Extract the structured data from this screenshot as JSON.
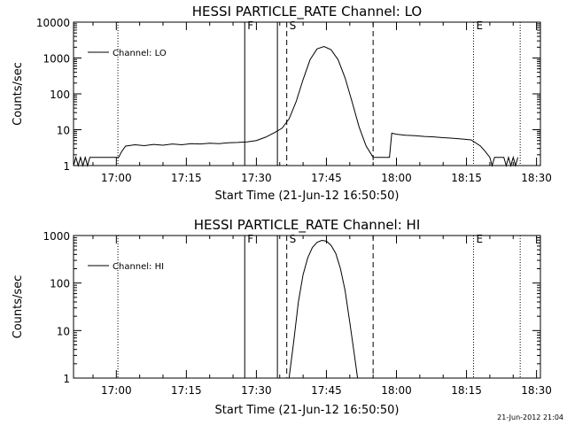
{
  "footer": {
    "timestamp": "21-Jun-2012 21:04"
  },
  "colors": {
    "line": "#000000",
    "background": "#ffffff"
  },
  "chart_data": [
    {
      "type": "line",
      "title": "HESSI PARTICLE_RATE Channel: LO",
      "xlabel": "Start Time (21-Jun-12 16:50:50)",
      "ylabel": "Counts/sec",
      "yscale": "log",
      "ylim": [
        1,
        10000
      ],
      "xlim": [
        "16:50:50",
        "18:30:50"
      ],
      "x_ticks": [
        "17:00",
        "17:15",
        "17:30",
        "17:45",
        "18:00",
        "18:15",
        "18:30"
      ],
      "y_ticks": [
        "1",
        "10",
        "100",
        "1000",
        "10000"
      ],
      "legend": {
        "position": "top-left",
        "entries": [
          "Channel: LO"
        ]
      },
      "series": [
        {
          "name": "Channel: LO",
          "x": [
            "16:50:50",
            "16:51:20",
            "16:51:50",
            "16:52:20",
            "16:52:50",
            "16:53:20",
            "16:53:50",
            "16:54:20",
            "16:55:00",
            "16:57:00",
            "16:59:00",
            "17:00:30",
            "17:01:10",
            "17:02:00",
            "17:04:00",
            "17:06:00",
            "17:08:00",
            "17:10:00",
            "17:12:00",
            "17:14:00",
            "17:16:00",
            "17:18:00",
            "17:20:00",
            "17:22:00",
            "17:24:00",
            "17:26:00",
            "17:28:00",
            "17:30:00",
            "17:32:00",
            "17:34:00",
            "17:35:30",
            "17:37:00",
            "17:38:30",
            "17:40:00",
            "17:41:30",
            "17:43:00",
            "17:44:30",
            "17:46:00",
            "17:47:30",
            "17:49:00",
            "17:50:30",
            "17:52:00",
            "17:53:30",
            "17:55:00",
            "17:57:00",
            "17:58:30",
            "17:59:00",
            "18:00:00",
            "18:02:00",
            "18:04:00",
            "18:06:00",
            "18:08:00",
            "18:10:00",
            "18:12:00",
            "18:14:00",
            "18:16:00",
            "18:18:00",
            "18:19:00",
            "18:20:00",
            "18:20:30",
            "18:21:00",
            "18:21:30",
            "18:22:00",
            "18:22:30",
            "18:23:00",
            "18:23:30",
            "18:24:00",
            "18:24:30",
            "18:25:00",
            "18:25:30",
            "18:26:00"
          ],
          "values": [
            1,
            1.7,
            1,
            1.7,
            1,
            1.7,
            1,
            1.7,
            1.7,
            1.7,
            1.7,
            1.7,
            2.5,
            3.5,
            3.8,
            3.6,
            3.9,
            3.7,
            4.0,
            3.8,
            4.1,
            4.0,
            4.2,
            4.1,
            4.3,
            4.4,
            4.6,
            5.0,
            6.2,
            8.5,
            11,
            20,
            60,
            250,
            900,
            1800,
            2100,
            1700,
            900,
            280,
            60,
            12,
            3.5,
            1.7,
            1.7,
            1.7,
            8,
            7.5,
            7,
            6.8,
            6.5,
            6.3,
            6,
            5.8,
            5.5,
            5.2,
            3.5,
            2.5,
            1.7,
            1,
            1.7,
            1.7,
            1.7,
            1.7,
            1.7,
            1,
            1.7,
            1,
            1.7,
            1,
            1.7
          ]
        }
      ],
      "markers": [
        {
          "label": "F",
          "time": "17:27:30",
          "style": "solid"
        },
        {
          "label": "",
          "time": "17:34:30",
          "style": "solid"
        },
        {
          "label": "S",
          "time": "17:36:30",
          "style": "dashed"
        },
        {
          "label": "",
          "time": "17:55:00",
          "style": "dashed"
        },
        {
          "label": "",
          "time": "17:00:20",
          "style": "dotted"
        },
        {
          "label": "E",
          "time": "18:16:30",
          "style": "dotted"
        },
        {
          "label": "",
          "time": "18:26:30",
          "style": "dotted"
        }
      ]
    },
    {
      "type": "line",
      "title": "HESSI PARTICLE_RATE Channel: HI",
      "xlabel": "Start Time (21-Jun-12 16:50:50)",
      "ylabel": "Counts/sec",
      "yscale": "log",
      "ylim": [
        1,
        1000
      ],
      "xlim": [
        "16:50:50",
        "18:30:50"
      ],
      "x_ticks": [
        "17:00",
        "17:15",
        "17:30",
        "17:45",
        "18:00",
        "18:15",
        "18:30"
      ],
      "y_ticks": [
        "1",
        "10",
        "100",
        "1000"
      ],
      "legend": {
        "position": "top-left",
        "entries": [
          "Channel: HI"
        ]
      },
      "series": [
        {
          "name": "Channel: HI",
          "x": [
            "17:37:00",
            "17:38:00",
            "17:39:00",
            "17:40:00",
            "17:41:00",
            "17:42:00",
            "17:43:00",
            "17:44:00",
            "17:45:00",
            "17:46:00",
            "17:47:00",
            "17:48:00",
            "17:49:00",
            "17:50:00",
            "17:51:00",
            "17:51:40"
          ],
          "values": [
            1,
            6,
            40,
            150,
            340,
            560,
            720,
            790,
            760,
            620,
            420,
            200,
            70,
            15,
            3,
            1
          ]
        }
      ],
      "markers": [
        {
          "label": "F",
          "time": "17:27:30",
          "style": "solid"
        },
        {
          "label": "",
          "time": "17:34:30",
          "style": "solid"
        },
        {
          "label": "S",
          "time": "17:36:30",
          "style": "dashed"
        },
        {
          "label": "",
          "time": "17:55:00",
          "style": "dashed"
        },
        {
          "label": "",
          "time": "17:00:20",
          "style": "dotted"
        },
        {
          "label": "E",
          "time": "18:16:30",
          "style": "dotted"
        },
        {
          "label": "",
          "time": "18:26:30",
          "style": "dotted"
        }
      ]
    }
  ]
}
